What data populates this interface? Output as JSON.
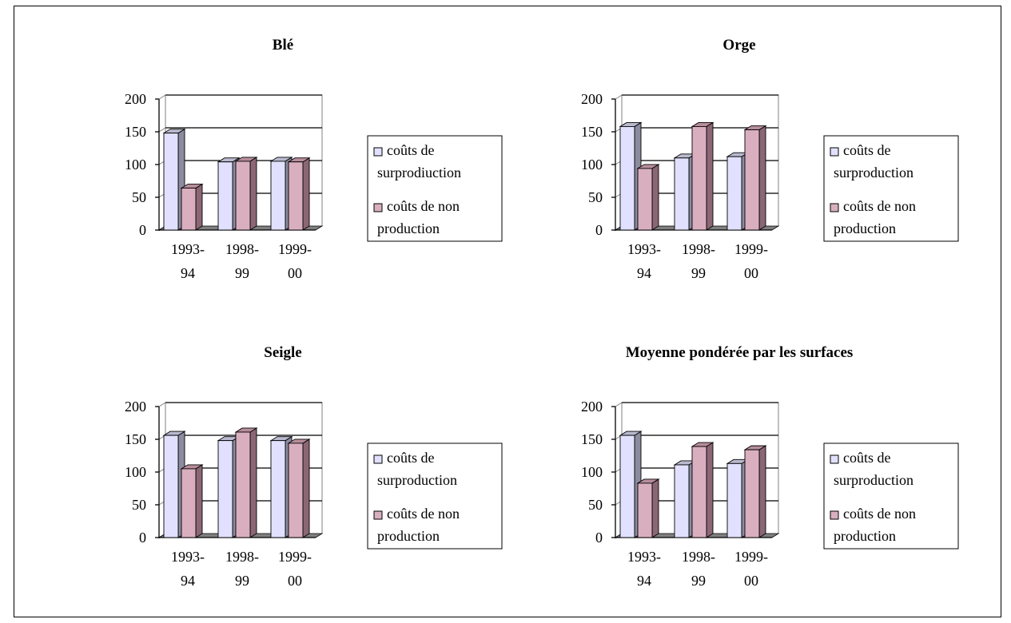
{
  "colors": {
    "surproduction_front": "#e1e1ff",
    "surproduction_side": "#8c8c9f",
    "surproduction_top": "#b9b9cf",
    "nonproduction_front": "#d9afbf",
    "nonproduction_side": "#8b6674",
    "nonproduction_top": "#b88d9c",
    "floor": "#808080",
    "gridline": "#000000",
    "wall_border": "#808080"
  },
  "chart_data": [
    {
      "type": "bar",
      "title": "Blé",
      "categories": [
        [
          "1993-",
          "94"
        ],
        [
          "1998-",
          "99"
        ],
        [
          "1999-",
          "00"
        ]
      ],
      "ylim": [
        0,
        200
      ],
      "yticks": [
        "0",
        "50",
        "100",
        "150",
        "200"
      ],
      "grid": true,
      "legend_position": "right",
      "series": [
        {
          "name_lines": [
            "coûts de",
            "surprodiuction"
          ],
          "values": [
            148,
            104,
            105
          ],
          "style": "surproduction"
        },
        {
          "name_lines": [
            "coûts de non",
            "production"
          ],
          "values": [
            64,
            105,
            104
          ],
          "style": "nonproduction"
        }
      ]
    },
    {
      "type": "bar",
      "title": "Orge",
      "categories": [
        [
          "1993-",
          "94"
        ],
        [
          "1998-",
          "99"
        ],
        [
          "1999-",
          "00"
        ]
      ],
      "ylim": [
        0,
        200
      ],
      "yticks": [
        "0",
        "50",
        "100",
        "150",
        "200"
      ],
      "grid": true,
      "legend_position": "right",
      "series": [
        {
          "name_lines": [
            "coûts de",
            "surproduction"
          ],
          "values": [
            158,
            110,
            112
          ],
          "style": "surproduction"
        },
        {
          "name_lines": [
            "coûts de non",
            "production"
          ],
          "values": [
            94,
            158,
            153
          ],
          "style": "nonproduction"
        }
      ]
    },
    {
      "type": "bar",
      "title": "Seigle",
      "categories": [
        [
          "1993-",
          "94"
        ],
        [
          "1998-",
          "99"
        ],
        [
          "1999-",
          "00"
        ]
      ],
      "ylim": [
        0,
        200
      ],
      "yticks": [
        "0",
        "50",
        "100",
        "150",
        "200"
      ],
      "grid": true,
      "legend_position": "right",
      "series": [
        {
          "name_lines": [
            "coûts de",
            "surproduction"
          ],
          "values": [
            156,
            148,
            148
          ],
          "style": "surproduction"
        },
        {
          "name_lines": [
            "coûts de non",
            "production"
          ],
          "values": [
            105,
            161,
            144
          ],
          "style": "nonproduction"
        }
      ]
    },
    {
      "type": "bar",
      "title": "Moyenne pondérée par les surfaces",
      "categories": [
        [
          "1993-",
          "94"
        ],
        [
          "1998-",
          "99"
        ],
        [
          "1999-",
          "00"
        ]
      ],
      "ylim": [
        0,
        200
      ],
      "yticks": [
        "0",
        "50",
        "100",
        "150",
        "200"
      ],
      "grid": true,
      "legend_position": "right",
      "series": [
        {
          "name_lines": [
            "coûts de",
            "surproduction"
          ],
          "values": [
            156,
            111,
            113
          ],
          "style": "surproduction"
        },
        {
          "name_lines": [
            "coûts de non",
            "production"
          ],
          "values": [
            83,
            139,
            134
          ],
          "style": "nonproduction"
        }
      ]
    }
  ]
}
